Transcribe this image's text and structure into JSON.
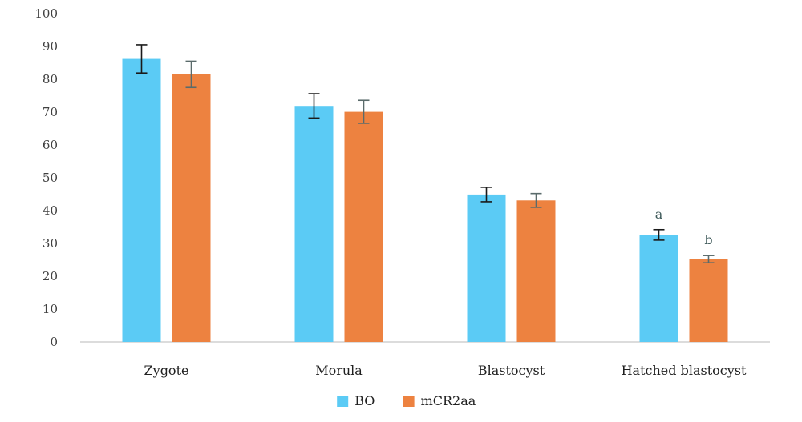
{
  "chart_data": {
    "type": "bar",
    "categories": [
      "Zygote",
      "Morula",
      "Blastocyst",
      "Hatched blastocyst"
    ],
    "series": [
      {
        "name": "BO",
        "color": "#5BCBF5",
        "error_color": "#1a1a1a",
        "values": [
          86.2,
          71.9,
          44.9,
          32.6
        ],
        "error": [
          4.3,
          3.7,
          2.2,
          1.6
        ]
      },
      {
        "name": "mCR2aa",
        "color": "#ED8240",
        "error_color": "#5a6b6b",
        "values": [
          81.5,
          70.1,
          43.1,
          25.2
        ],
        "error": [
          4.0,
          3.5,
          2.1,
          1.1
        ]
      }
    ],
    "annotations": [
      {
        "series": 0,
        "category": 3,
        "text": "a"
      },
      {
        "series": 1,
        "category": 3,
        "text": "b"
      }
    ],
    "ylim": [
      0,
      100
    ],
    "yticks": [
      0,
      10,
      20,
      30,
      40,
      50,
      60,
      70,
      80,
      90,
      100
    ],
    "title": "",
    "xlabel": "",
    "ylabel": "",
    "grid": false,
    "legend": "bottom"
  }
}
